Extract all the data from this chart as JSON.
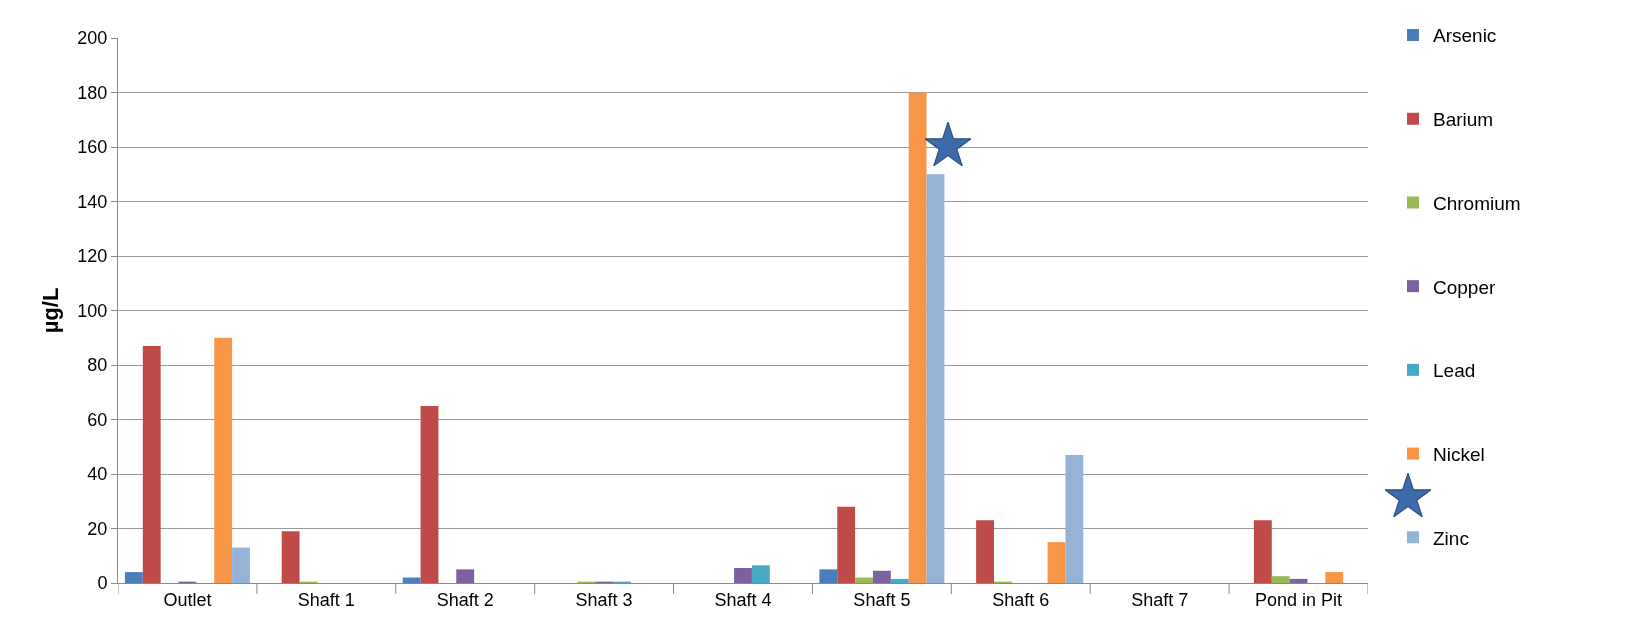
{
  "chart_data": {
    "type": "bar",
    "ylabel": "µg/L",
    "categories": [
      "Outlet",
      "Shaft 1",
      "Shaft 2",
      "Shaft 3",
      "Shaft 4",
      "Shaft 5",
      "Shaft 6",
      "Shaft 7",
      "Pond in Pit"
    ],
    "series": [
      {
        "name": "Arsenic",
        "color": "#4a7ebb",
        "values": [
          4,
          null,
          2,
          null,
          null,
          5,
          null,
          null,
          null
        ]
      },
      {
        "name": "Barium",
        "color": "#be4b48",
        "values": [
          87,
          19,
          65,
          null,
          null,
          28,
          23,
          null,
          23
        ]
      },
      {
        "name": "Chromium",
        "color": "#98b954",
        "values": [
          null,
          0.5,
          null,
          0.5,
          null,
          2,
          0.5,
          null,
          2.5
        ]
      },
      {
        "name": "Copper",
        "color": "#7d60a0",
        "values": [
          0.5,
          null,
          5,
          0.5,
          5.5,
          4.5,
          null,
          null,
          1.5
        ]
      },
      {
        "name": "Lead",
        "color": "#46aac5",
        "values": [
          null,
          null,
          null,
          0.5,
          6.5,
          1.5,
          null,
          null,
          null
        ]
      },
      {
        "name": "Nickel",
        "color": "#f79646",
        "values": [
          90,
          null,
          null,
          null,
          null,
          180,
          15,
          null,
          4
        ]
      },
      {
        "name": "Zinc",
        "color": "#95b3d7",
        "values": [
          13,
          null,
          null,
          null,
          null,
          150,
          47,
          null,
          null
        ]
      }
    ],
    "ylim": [
      0,
      200
    ],
    "yticks": [
      0,
      20,
      40,
      60,
      80,
      100,
      120,
      140,
      160,
      180,
      200
    ],
    "grid": "y",
    "legend": "right"
  }
}
